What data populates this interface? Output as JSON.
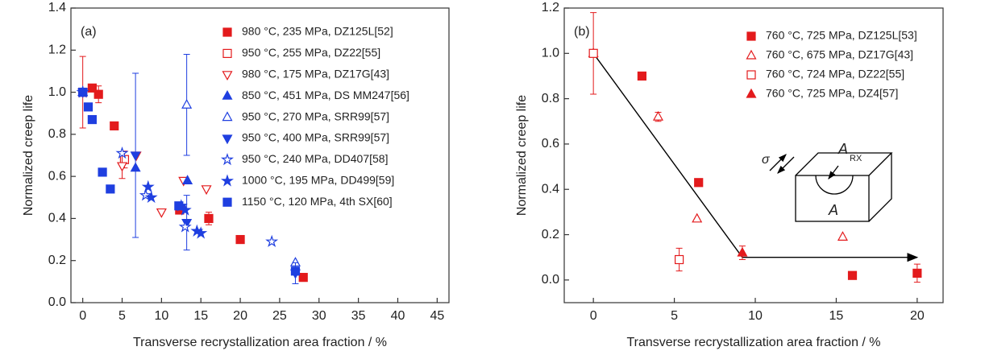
{
  "chart_data": [
    {
      "type": "scatter",
      "label": "(a)",
      "xlabel": "Transverse recrystallization area fraction / %",
      "ylabel": "Normalized creep life",
      "xlim": [
        -1.5,
        46.5
      ],
      "ylim": [
        0,
        1.4
      ],
      "xticks": [
        0,
        5,
        10,
        15,
        20,
        25,
        30,
        35,
        40,
        45
      ],
      "yticks": [
        {
          "value": 0,
          "label": "0.0"
        },
        0.2,
        0.4,
        0.6,
        0.8,
        {
          "value": 1,
          "label": "1.0"
        },
        1.2,
        1.4
      ],
      "legend": "upper right",
      "series": [
        {
          "name": "980 °C, 235 MPa, DZ125L[52]",
          "color": "#e31a1c",
          "marker": "square",
          "filled": true,
          "x": [
            0,
            1.2,
            2,
            4,
            12.3,
            16,
            20,
            28
          ],
          "values": [
            1.0,
            1.02,
            0.99,
            0.84,
            0.44,
            0.4,
            0.3,
            0.12
          ],
          "errors": [
            0.17,
            null,
            0.04,
            null,
            null,
            0.03,
            null,
            null
          ]
        },
        {
          "name": "950 °C, 255 MPa, DZ22[55]",
          "color": "#e31a1c",
          "marker": "square",
          "filled": false,
          "x": [
            0,
            5.3
          ],
          "values": [
            1.0,
            0.68
          ],
          "errors": [
            null,
            0.04
          ]
        },
        {
          "name": "980 °C, 175 MPa, DZ17G[43]",
          "color": "#e31a1c",
          "marker": "triangle-down",
          "filled": false,
          "x": [
            0,
            5,
            6.8,
            10,
            12.8,
            15.7
          ],
          "values": [
            1.0,
            0.65,
            0.7,
            0.43,
            0.58,
            0.54
          ],
          "errors": [
            null,
            0.06,
            null,
            null,
            null,
            null
          ]
        },
        {
          "name": "850 °C, 451 MPa, DS MM247[56]",
          "color": "#1f3fe0",
          "marker": "triangle-up",
          "filled": true,
          "x": [
            0,
            6.7,
            13.3
          ],
          "values": [
            1.0,
            0.64,
            0.58
          ],
          "errors": [
            null,
            null,
            null
          ]
        },
        {
          "name": "950 °C, 270 MPa, SRR99[57]",
          "color": "#1f3fe0",
          "marker": "triangle-up",
          "filled": false,
          "x": [
            0,
            13.2,
            27
          ],
          "values": [
            1.0,
            0.94,
            0.19
          ],
          "errors": [
            null,
            0.24,
            null
          ]
        },
        {
          "name": "950 °C, 400 MPa, SRR99[57]",
          "color": "#1f3fe0",
          "marker": "triangle-down",
          "filled": true,
          "x": [
            0,
            6.7,
            13.2,
            27
          ],
          "values": [
            1.0,
            0.7,
            0.38,
            0.14
          ],
          "errors": [
            null,
            0.39,
            0.13,
            0.05
          ]
        },
        {
          "name": "950 °C, 240 MPa, DD407[58]",
          "color": "#1f3fe0",
          "marker": "star",
          "filled": false,
          "x": [
            0,
            5,
            8,
            13,
            24
          ],
          "values": [
            1.0,
            0.71,
            0.51,
            0.36,
            0.29
          ],
          "errors": [
            null,
            null,
            null,
            null,
            null
          ]
        },
        {
          "name": "1000 °C, 195 MPa, DD499[59]",
          "color": "#1f3fe0",
          "marker": "star",
          "filled": true,
          "x": [
            0,
            8.3,
            8.7,
            12.5,
            13,
            14.5,
            15
          ],
          "values": [
            1.0,
            0.55,
            0.5,
            0.46,
            0.44,
            0.34,
            0.33
          ],
          "errors": [
            null,
            null,
            null,
            null,
            null,
            null,
            null
          ]
        },
        {
          "name": "1150 °C, 120 MPa, 4th SX[60]",
          "color": "#1f3fe0",
          "marker": "square",
          "filled": true,
          "x": [
            0,
            0.7,
            1.2,
            2.5,
            3.5,
            12.2,
            27
          ],
          "values": [
            1.0,
            0.93,
            0.87,
            0.62,
            0.54,
            0.46,
            0.15
          ],
          "errors": [
            null,
            null,
            null,
            null,
            null,
            null,
            null
          ]
        }
      ]
    },
    {
      "type": "scatter",
      "label": "(b)",
      "xlabel": "Transverse recrystallization area fraction / %",
      "ylabel": "Normalized creep life",
      "xlim": [
        -1.8,
        21.6
      ],
      "ylim": [
        -0.1,
        1.2
      ],
      "xticks": [
        0,
        5,
        10,
        15,
        20
      ],
      "yticks": [
        {
          "value": 0,
          "label": "0.0"
        },
        0.2,
        0.4,
        0.6,
        0.8,
        {
          "value": 1,
          "label": "1.0"
        },
        1.2
      ],
      "legend": "upper right",
      "trend_line": {
        "x": [
          0,
          9.2,
          20
        ],
        "y": [
          1.0,
          0.1,
          0.1
        ]
      },
      "inset": {
        "sigma": "σ",
        "a_rx": "A",
        "rx": "RX",
        "a": "A"
      },
      "series": [
        {
          "name": "760 °C, 725 MPa, DZ125L[53]",
          "color": "#e31a1c",
          "marker": "square",
          "filled": true,
          "x": [
            3,
            6.5,
            16,
            20
          ],
          "values": [
            0.9,
            0.43,
            0.02,
            0.03
          ],
          "errors": [
            null,
            null,
            null,
            0.04
          ]
        },
        {
          "name": "760 °C, 675 MPa, DZ17G[43]",
          "color": "#e31a1c",
          "marker": "triangle-up",
          "filled": false,
          "x": [
            0,
            4,
            6.4,
            15.4
          ],
          "values": [
            1.0,
            0.72,
            0.27,
            0.19
          ],
          "errors": [
            null,
            0.02,
            null,
            null
          ]
        },
        {
          "name": "760 °C, 724 MPa, DZ22[55]",
          "color": "#e31a1c",
          "marker": "square",
          "filled": false,
          "x": [
            0,
            5.3
          ],
          "values": [
            1.0,
            0.09
          ],
          "errors": [
            0.18,
            0.05
          ]
        },
        {
          "name": "760 °C, 725 MPa, DZ4[57]",
          "color": "#e31a1c",
          "marker": "triangle-up",
          "filled": true,
          "x": [
            9.2
          ],
          "values": [
            0.12
          ],
          "errors": [
            0.03
          ]
        }
      ]
    }
  ]
}
